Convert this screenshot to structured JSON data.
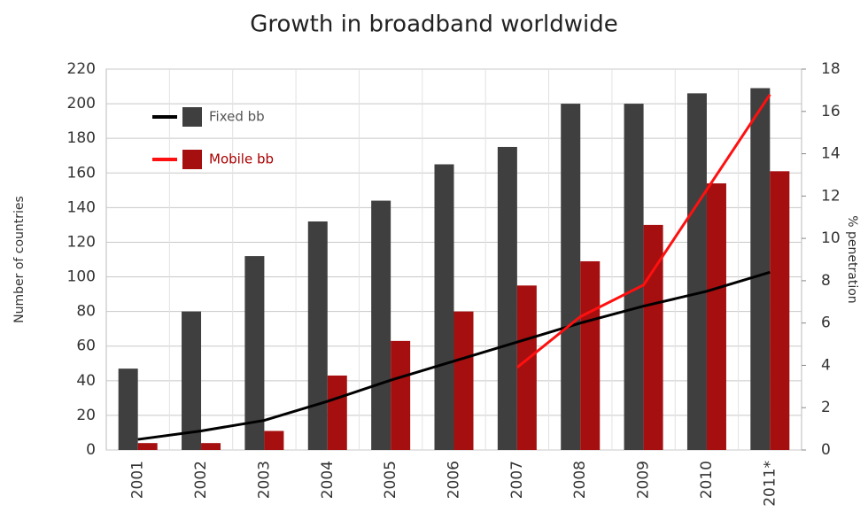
{
  "chart_data": {
    "type": "bar_line",
    "title": "Growth in broadband worldwide",
    "y_label": "Number of countries",
    "y2_label": "% penetration",
    "categories": [
      "2001",
      "2002",
      "2003",
      "2004",
      "2005",
      "2006",
      "2007",
      "2008",
      "2009",
      "2010",
      "2011*"
    ],
    "series": [
      {
        "name": "Fixed bb",
        "color": "#3f3f3f",
        "values": [
          47,
          80,
          112,
          132,
          144,
          165,
          175,
          200,
          200,
          206,
          209
        ],
        "line": {
          "color": "#000000",
          "axis": "y2",
          "values": [
            0.5,
            0.9,
            1.4,
            2.3,
            3.3,
            4.2,
            5.1,
            6.0,
            6.8,
            7.5,
            8.4
          ]
        }
      },
      {
        "name": "Mobile bb",
        "color": "#a50f0f",
        "values": [
          4,
          4,
          11,
          43,
          63,
          80,
          95,
          109,
          130,
          154,
          161
        ],
        "line": {
          "color": "#ff1010",
          "axis": "y2",
          "values": [
            null,
            null,
            null,
            null,
            null,
            null,
            3.9,
            6.3,
            7.8,
            12.3,
            16.8
          ]
        }
      }
    ],
    "ylim": [
      0,
      220
    ],
    "yticks": [
      0,
      20,
      40,
      60,
      80,
      100,
      120,
      140,
      160,
      180,
      200,
      220
    ],
    "y2lim": [
      0,
      18
    ],
    "y2ticks": [
      0,
      2,
      4,
      6,
      8,
      10,
      12,
      14,
      16,
      18
    ],
    "grid": true,
    "legend": "upper left"
  }
}
